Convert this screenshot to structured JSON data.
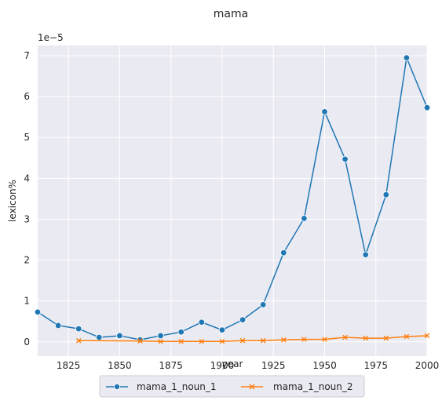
{
  "chart_data": {
    "type": "line",
    "title": "mama",
    "xlabel": "year",
    "ylabel": "lexicon%",
    "y_multiplier_label": "1e−5",
    "xlim": [
      1810,
      2000
    ],
    "ylim": [
      -0.35,
      7.25
    ],
    "x_ticks": [
      1825,
      1850,
      1875,
      1900,
      1925,
      1950,
      1975,
      2000
    ],
    "y_ticks": [
      0,
      1,
      2,
      3,
      4,
      5,
      6,
      7
    ],
    "grid": true,
    "legend_position": "bottom-center",
    "series": [
      {
        "name": "mama_1_noun_1",
        "color": "#1f77b4",
        "marker": "circle",
        "points": [
          [
            1810,
            0.73
          ],
          [
            1820,
            0.4
          ],
          [
            1830,
            0.32
          ],
          [
            1840,
            0.11
          ],
          [
            1850,
            0.15
          ],
          [
            1860,
            0.05
          ],
          [
            1870,
            0.15
          ],
          [
            1880,
            0.24
          ],
          [
            1890,
            0.48
          ],
          [
            1900,
            0.29
          ],
          [
            1910,
            0.54
          ],
          [
            1920,
            0.91
          ],
          [
            1930,
            2.18
          ],
          [
            1940,
            3.02
          ],
          [
            1950,
            5.63
          ],
          [
            1960,
            4.47
          ],
          [
            1970,
            2.13
          ],
          [
            1980,
            3.6
          ],
          [
            1990,
            6.95
          ],
          [
            2000,
            5.73
          ]
        ]
      },
      {
        "name": "mama_1_noun_2",
        "color": "#ff7f0e",
        "marker": "x",
        "points": [
          [
            1830,
            0.03
          ],
          [
            1860,
            0.02
          ],
          [
            1870,
            0.01
          ],
          [
            1880,
            0.01
          ],
          [
            1890,
            0.01
          ],
          [
            1900,
            0.01
          ],
          [
            1910,
            0.03
          ],
          [
            1920,
            0.03
          ],
          [
            1930,
            0.05
          ],
          [
            1940,
            0.06
          ],
          [
            1950,
            0.06
          ],
          [
            1960,
            0.11
          ],
          [
            1970,
            0.09
          ],
          [
            1980,
            0.09
          ],
          [
            1990,
            0.13
          ],
          [
            2000,
            0.15
          ]
        ]
      }
    ]
  }
}
